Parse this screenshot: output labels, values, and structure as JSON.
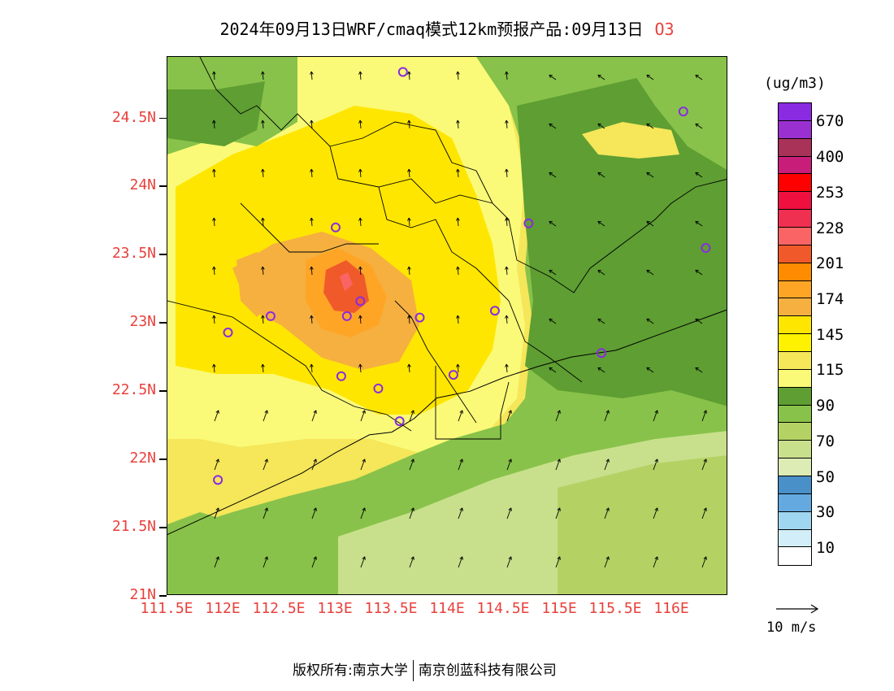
{
  "title": {
    "text": "2024年09月13日WRF/cmaq模式12km预报产品:09月13日",
    "pollutant": "O3"
  },
  "map": {
    "lon_range": [
      111.5,
      116.5
    ],
    "lat_range": [
      21.0,
      24.95
    ],
    "lat_ticks": [
      {
        "value": 24.5,
        "label": "24.5N"
      },
      {
        "value": 24.0,
        "label": "24N"
      },
      {
        "value": 23.5,
        "label": "23.5N"
      },
      {
        "value": 23.0,
        "label": "23N"
      },
      {
        "value": 22.5,
        "label": "22.5N"
      },
      {
        "value": 22.0,
        "label": "22N"
      },
      {
        "value": 21.5,
        "label": "21.5N"
      },
      {
        "value": 21.0,
        "label": "21N"
      }
    ],
    "lon_ticks": [
      {
        "value": 111.5,
        "label": "111.5E"
      },
      {
        "value": 112.0,
        "label": "112E"
      },
      {
        "value": 112.5,
        "label": "112.5E"
      },
      {
        "value": 113.0,
        "label": "113E"
      },
      {
        "value": 113.5,
        "label": "113.5E"
      },
      {
        "value": 114.0,
        "label": "114E"
      },
      {
        "value": 114.5,
        "label": "114.5E"
      },
      {
        "value": 115.0,
        "label": "115E"
      },
      {
        "value": 115.5,
        "label": "115.5E"
      },
      {
        "value": 116.0,
        "label": "116E"
      }
    ],
    "stations": [
      {
        "lon": 113.6,
        "lat": 24.84
      },
      {
        "lon": 113.0,
        "lat": 23.7
      },
      {
        "lon": 112.42,
        "lat": 23.05
      },
      {
        "lon": 112.04,
        "lat": 22.93
      },
      {
        "lon": 113.1,
        "lat": 23.05
      },
      {
        "lon": 113.22,
        "lat": 23.16
      },
      {
        "lon": 113.75,
        "lat": 23.04
      },
      {
        "lon": 114.42,
        "lat": 23.09
      },
      {
        "lon": 114.72,
        "lat": 23.73
      },
      {
        "lon": 116.1,
        "lat": 24.55
      },
      {
        "lon": 116.3,
        "lat": 23.55
      },
      {
        "lon": 113.05,
        "lat": 22.61
      },
      {
        "lon": 113.38,
        "lat": 22.52
      },
      {
        "lon": 113.57,
        "lat": 22.28
      },
      {
        "lon": 114.05,
        "lat": 22.62
      },
      {
        "lon": 115.37,
        "lat": 22.78
      },
      {
        "lon": 111.95,
        "lat": 21.85
      }
    ],
    "ocean_line": [
      [
        111.5,
        21.45
      ],
      [
        111.9,
        21.6
      ],
      [
        112.3,
        21.75
      ],
      [
        112.7,
        21.9
      ],
      [
        113.0,
        22.05
      ],
      [
        113.3,
        22.18
      ],
      [
        113.5,
        22.2
      ],
      [
        113.7,
        22.3
      ],
      [
        113.9,
        22.45
      ],
      [
        114.2,
        22.5
      ],
      [
        114.5,
        22.6
      ],
      [
        114.8,
        22.68
      ],
      [
        115.1,
        22.75
      ],
      [
        115.5,
        22.8
      ],
      [
        115.9,
        22.92
      ],
      [
        116.5,
        23.1
      ]
    ]
  },
  "legend": {
    "unit": "(ug/m3)",
    "colors": [
      "#8a2be2",
      "#9b30d0",
      "#a83258",
      "#c81e7a",
      "#ff0000",
      "#f01040",
      "#f03050",
      "#fa6464",
      "#f05a2a",
      "#ff8c00",
      "#ffa526",
      "#f5b040",
      "#ffe600",
      "#fff200",
      "#f5e65a",
      "#fafa78",
      "#5e9e32",
      "#88c24a",
      "#b4d264",
      "#c8e08c",
      "#dcecb4",
      "#4a90c8",
      "#64aae1",
      "#a0d7f0",
      "#d2eef8",
      "#ffffff"
    ],
    "labels": [
      {
        "text": "670",
        "after_index": 1
      },
      {
        "text": "400",
        "after_index": 3
      },
      {
        "text": "253",
        "after_index": 5
      },
      {
        "text": "228",
        "after_index": 7
      },
      {
        "text": "201",
        "after_index": 9
      },
      {
        "text": "174",
        "after_index": 11
      },
      {
        "text": "145",
        "after_index": 13
      },
      {
        "text": "115",
        "after_index": 15
      },
      {
        "text": "90",
        "after_index": 17
      },
      {
        "text": "70",
        "after_index": 19
      },
      {
        "text": "50",
        "after_index": 21
      },
      {
        "text": "30",
        "after_index": 23
      },
      {
        "text": "10",
        "after_index": 25
      }
    ]
  },
  "vector_key": {
    "label": "10 m/s"
  },
  "footer": {
    "left": "版权所有:南京大学",
    "right": "南京创蓝科技有限公司"
  }
}
